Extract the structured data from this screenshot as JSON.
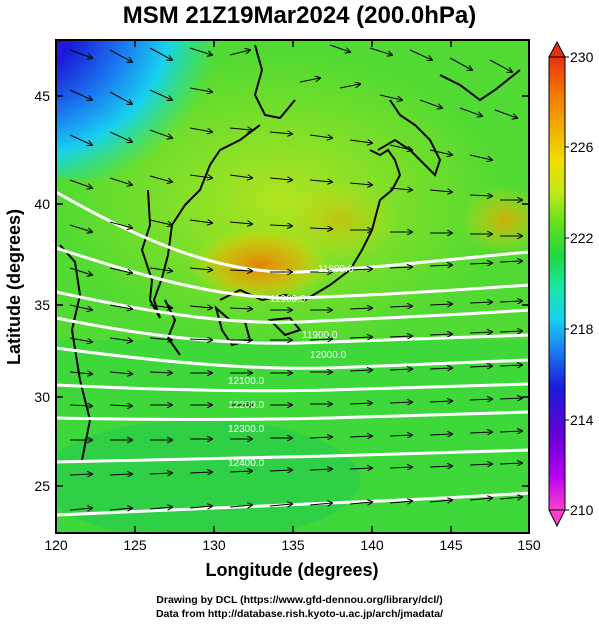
{
  "title": "MSM 21Z19Mar2024 (200.0hPa)",
  "map": {
    "xlabel": "Longitude (degrees)",
    "ylabel": "Latitude  (degrees)",
    "xlim": [
      120,
      150
    ],
    "ylim": [
      22.4,
      47.6
    ],
    "xticks": [
      "120",
      "125",
      "130",
      "135",
      "140",
      "145",
      "150"
    ],
    "yticks": [
      "25",
      "30",
      "35",
      "40",
      "45"
    ],
    "contour_labels": [
      "11800.0",
      "11900.0",
      "11900.0",
      "12000.0",
      "12100.0",
      "12200.0",
      "12300.0",
      "12400.0"
    ]
  },
  "colorbar": {
    "min": 210,
    "max": 230,
    "ticks": [
      "230",
      "226",
      "222",
      "218",
      "214",
      "210"
    ],
    "colors": [
      "#ff3fd0",
      "#b000f0",
      "#6a00d8",
      "#1a1ad8",
      "#1a7af0",
      "#18d0f0",
      "#18e8a8",
      "#20d640",
      "#60e020",
      "#c0e818",
      "#f0e000",
      "#f0b000",
      "#f07800",
      "#e83010"
    ]
  },
  "credits": {
    "line1": "Drawing by DCL (https://www.gfd-dennou.org/library/dcl/)",
    "line2": "Data from http://database.rish.kyoto-u.ac.jp/arch/jmadata/"
  }
}
